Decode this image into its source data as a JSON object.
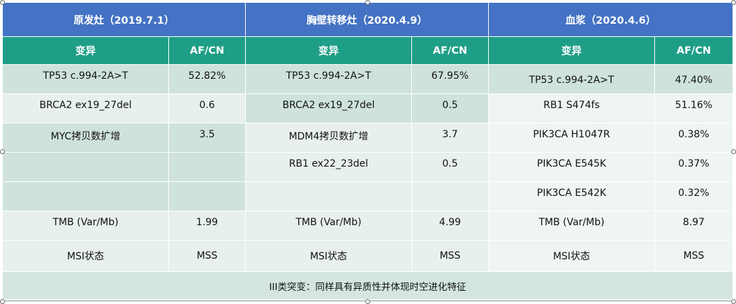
{
  "headers": [
    "原发灶（2019.7.1）",
    "胸壁转移灶（2020.4.9）",
    "血浆（2020.4.6）"
  ],
  "subheaders": {
    "variant": "变异",
    "afcn": "AF/CN"
  },
  "rows": [
    {
      "v1": "TP53 c.994-2A>T",
      "a1": "52.82%",
      "v2": "TP53 c.994-2A>T",
      "a2": "67.95%",
      "v3": "TP53 c.994-2A>T",
      "a3": "47.40%"
    },
    {
      "v1": "BRCA2 ex19_27del",
      "a1": "0.6",
      "v2": "BRCA2 ex19_27del",
      "a2": "0.5",
      "v3": "RB1 S474fs",
      "a3": "51.16%"
    },
    {
      "v1": "MYC拷贝数扩增",
      "a1": "3.5",
      "v2": "MDM4拷贝数扩增",
      "a2": "3.7",
      "v3": "PIK3CA H1047R",
      "a3": "0.38%"
    },
    {
      "v1": "",
      "a1": "",
      "v2": "RB1 ex22_23del",
      "a2": "0.5",
      "v3": "PIK3CA E545K",
      "a3": "0.37%"
    },
    {
      "v1": "",
      "a1": "",
      "v2": "",
      "a2": "",
      "v3": "PIK3CA E542K",
      "a3": "0.32%"
    },
    {
      "v1": "TMB (Var/Mb)",
      "a1": "1.99",
      "v2": "TMB (Var/Mb)",
      "a2": "4.99",
      "v3": "TMB (Var/Mb)",
      "a3": "8.97"
    },
    {
      "v1": "MSI状态",
      "a1": "MSS",
      "v2": "MSI状态",
      "a2": "MSS",
      "v3": "MSI状态",
      "a3": "MSS"
    }
  ],
  "footer": "III类突变：同样具有异质性并体现时空进化特征"
}
